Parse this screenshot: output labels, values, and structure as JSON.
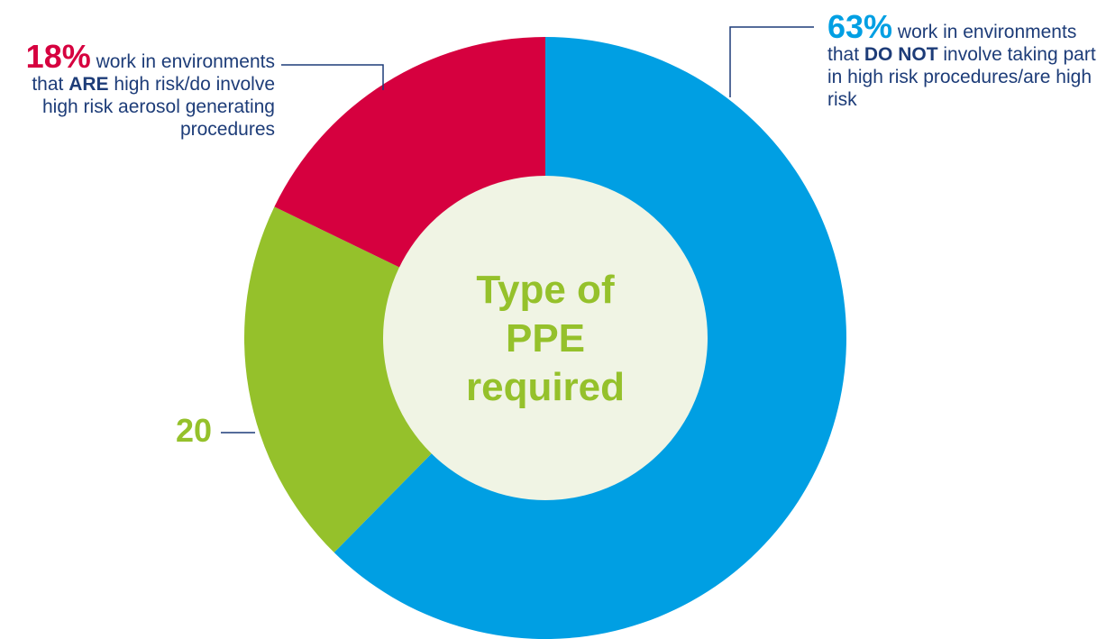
{
  "chart_data": {
    "type": "donut",
    "center_text": "Type of PPE required",
    "values": [
      63,
      20,
      18
    ],
    "value_labels": [
      "63%",
      "20",
      "18%"
    ],
    "colors": [
      "#009fe3",
      "#95c12b",
      "#d6003f"
    ],
    "descriptions": [
      {
        "before": "work in environments that",
        "emphasis": "DO NOT",
        "after": "involve taking part in high risk procedures/are high risk"
      },
      null,
      {
        "before": "work in environments that",
        "emphasis": "ARE",
        "after": "high risk/do involve high risk aerosol generating procedures"
      }
    ]
  }
}
